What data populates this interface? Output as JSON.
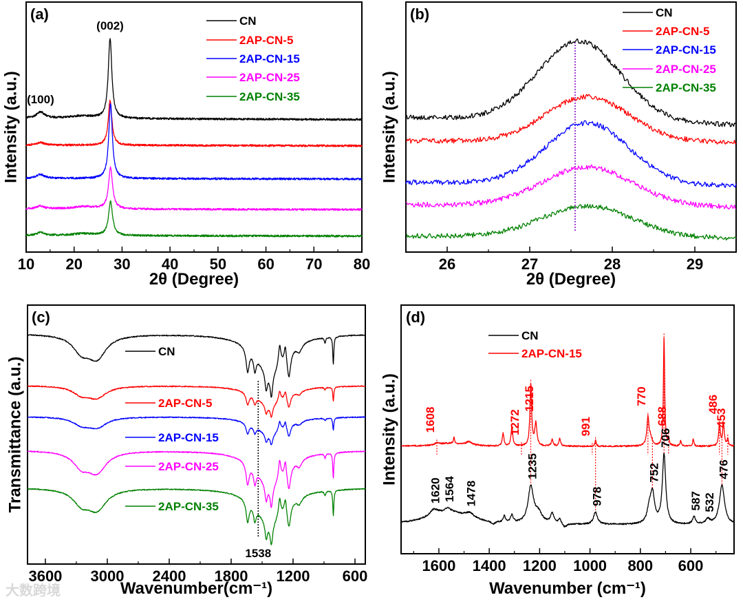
{
  "watermark": "大数跨境",
  "chart_data": [
    {
      "panel_label": "(a)",
      "type": "line",
      "xlabel": "2θ (Degree)",
      "ylabel": "Intensity (a.u.)",
      "xlim": [
        10,
        80
      ],
      "ylim": [
        0,
        10
      ],
      "xticks": [
        10,
        20,
        30,
        40,
        50,
        60,
        70,
        80
      ],
      "xstep": 0.05,
      "noise": 0.04,
      "legend": "top-right",
      "annotations": [
        {
          "text": "(002)",
          "x": 27.5,
          "series": 0
        },
        {
          "text": "(100)",
          "x": 13,
          "series": 0
        }
      ],
      "series": [
        {
          "name": "CN",
          "color": "#000000",
          "baseline": [
            5.35,
            5.3
          ],
          "peaks": [
            [
              27.5,
              3.2,
              0.45
            ],
            [
              13.0,
              0.25,
              1.0
            ],
            [
              21.5,
              0.1,
              3
            ]
          ]
        },
        {
          "name": "2AP-CN-5",
          "color": "#ff0000",
          "baseline": [
            4.28,
            4.25
          ],
          "peaks": [
            [
              27.5,
              1.8,
              0.45
            ],
            [
              13.0,
              0.1,
              1.0
            ]
          ]
        },
        {
          "name": "2AP-CN-15",
          "color": "#0000ff",
          "baseline": [
            2.95,
            2.92
          ],
          "peaks": [
            [
              27.6,
              3.0,
              0.45
            ],
            [
              13.0,
              0.15,
              1.0
            ]
          ]
        },
        {
          "name": "2AP-CN-25",
          "color": "#ff00ff",
          "baseline": [
            1.72,
            1.7
          ],
          "peaks": [
            [
              27.6,
              1.65,
              0.5
            ],
            [
              13.0,
              0.12,
              1.0
            ],
            [
              22,
              0.1,
              3
            ]
          ]
        },
        {
          "name": "2AP-CN-35",
          "color": "#008000",
          "baseline": [
            0.66,
            0.64
          ],
          "peaks": [
            [
              27.6,
              1.35,
              0.5
            ],
            [
              13.0,
              0.12,
              1.0
            ],
            [
              22,
              0.08,
              3
            ]
          ]
        }
      ]
    },
    {
      "panel_label": "(b)",
      "type": "line",
      "xlabel": "2θ (Degree)",
      "ylabel": "Intensity (a.u.)",
      "xlim": [
        25.5,
        29.5
      ],
      "ylim": [
        0,
        10
      ],
      "xticks": [
        26,
        27,
        28,
        29
      ],
      "xstep": 0.01,
      "noise": 0.1,
      "legend": "top-right",
      "reference_line": 27.55,
      "reference_color": "#8000c0",
      "series": [
        {
          "name": "CN",
          "color": "#000000",
          "baseline": [
            5.4,
            5.1
          ],
          "peaks": [
            [
              27.6,
              3.2,
              0.5,
              "g"
            ]
          ]
        },
        {
          "name": "2AP-CN-5",
          "color": "#ff0000",
          "baseline": [
            4.45,
            4.4
          ],
          "peaks": [
            [
              27.7,
              1.8,
              0.5,
              "g"
            ]
          ]
        },
        {
          "name": "2AP-CN-15",
          "color": "#0000ff",
          "baseline": [
            2.8,
            2.65
          ],
          "peaks": [
            [
              27.7,
              2.45,
              0.5,
              "g"
            ]
          ]
        },
        {
          "name": "2AP-CN-25",
          "color": "#ff00ff",
          "baseline": [
            1.9,
            1.8
          ],
          "peaks": [
            [
              27.7,
              1.55,
              0.55,
              "g"
            ]
          ]
        },
        {
          "name": "2AP-CN-35",
          "color": "#008000",
          "baseline": [
            0.65,
            0.55
          ],
          "peaks": [
            [
              27.7,
              1.25,
              0.55,
              "g"
            ]
          ]
        }
      ]
    },
    {
      "panel_label": "(c)",
      "type": "line",
      "xlabel": "Wavenumber(cm⁻¹)",
      "ylabel": "Transmittance (a.u.)",
      "xlim": [
        3773,
        500
      ],
      "ylim": [
        0,
        10
      ],
      "xticks": [
        3600,
        3000,
        2400,
        1800,
        1200,
        600
      ],
      "xstep": 3,
      "noise": 0.02,
      "legend": "inline",
      "reference_line": 1538,
      "reference_color": "#000000",
      "annotations": [
        {
          "text": "1538",
          "x": 1538
        }
      ],
      "features": [
        [
          3250,
          -0.6,
          100
        ],
        [
          3100,
          -0.85,
          110
        ],
        [
          1420,
          -1.5,
          170
        ],
        [
          1640,
          -0.9,
          18
        ],
        [
          1570,
          -0.6,
          15
        ],
        [
          1460,
          -0.7,
          15
        ],
        [
          1410,
          -0.9,
          15
        ],
        [
          1330,
          0.8,
          14
        ],
        [
          1275,
          0.6,
          12
        ],
        [
          1240,
          -1.0,
          20
        ],
        [
          1140,
          -0.3,
          30
        ],
        [
          890,
          -0.2,
          8
        ],
        [
          810,
          -1.1,
          6
        ]
      ],
      "series": [
        {
          "name": "CN",
          "color": "#000000",
          "baseline": [
            8.9,
            8.9
          ],
          "scale": 1.0
        },
        {
          "name": "2AP-CN-5",
          "color": "#ff0000",
          "baseline": [
            6.9,
            6.9
          ],
          "scale": 0.5
        },
        {
          "name": "2AP-CN-15",
          "color": "#0000ff",
          "baseline": [
            5.7,
            5.7
          ],
          "scale": 0.45
        },
        {
          "name": "2AP-CN-25",
          "color": "#ff00ff",
          "baseline": [
            4.4,
            4.4
          ],
          "scale": 0.9
        },
        {
          "name": "2AP-CN-35",
          "color": "#008000",
          "baseline": [
            2.95,
            2.95
          ],
          "scale": 0.9
        }
      ]
    },
    {
      "panel_label": "(d)",
      "type": "line",
      "xlabel": "Wavenumber (cm⁻¹)",
      "ylabel": "Intensity (a.u.)",
      "xlim": [
        1750,
        428
      ],
      "ylim": [
        0,
        10
      ],
      "xticks": [
        1600,
        1400,
        1200,
        1000,
        800,
        600
      ],
      "xstep": 1.2,
      "noise": 0.03,
      "legend": "top-left",
      "marker_lines": [
        1608,
        1272,
        1235,
        991,
        978,
        770,
        752,
        706,
        688,
        486,
        476,
        453
      ],
      "series": [
        {
          "name": "CN",
          "color": "#000000",
          "baseline": [
            1.16,
            1.16
          ],
          "peaks": [
            [
              1560,
              0.5,
              100
            ],
            [
              1620,
              0.25,
              20
            ],
            [
              1564,
              0.15,
              15
            ],
            [
              1478,
              0.2,
              20
            ],
            [
              1340,
              0.25,
              5
            ],
            [
              1310,
              0.3,
              6
            ],
            [
              1235,
              1.45,
              13
            ],
            [
              1205,
              0.4,
              18
            ],
            [
              1150,
              0.4,
              8
            ],
            [
              1120,
              0.2,
              6
            ],
            [
              978,
              0.5,
              9
            ],
            [
              765,
              0.5,
              10
            ],
            [
              752,
              1.2,
              10
            ],
            [
              706,
              2.8,
              8
            ],
            [
              587,
              0.3,
              7
            ],
            [
              532,
              0.2,
              10
            ],
            [
              476,
              1.6,
              12
            ],
            [
              1100,
              -0.15,
              10
            ],
            [
              1385,
              -0.12,
              10
            ]
          ],
          "annotations": [
            "1620",
            "1564",
            "1478",
            "1235",
            "978",
            "752",
            "706",
            "587",
            "532",
            "476"
          ]
        },
        {
          "name": "2AP-CN-15",
          "color": "#ff0000",
          "baseline": [
            4.32,
            4.32
          ],
          "peaks": [
            [
              1560,
              0.12,
              60
            ],
            [
              1608,
              0.08,
              8
            ],
            [
              1540,
              0.25,
              3
            ],
            [
              1480,
              0.15,
              15
            ],
            [
              1345,
              0.5,
              4
            ],
            [
              1310,
              0.8,
              4
            ],
            [
              1235,
              2.5,
              4
            ],
            [
              1215,
              0.9,
              5
            ],
            [
              1150,
              0.3,
              4
            ],
            [
              1120,
              0.3,
              4
            ],
            [
              978,
              0.25,
              3
            ],
            [
              770,
              1.1,
              5
            ],
            [
              760,
              0.3,
              8
            ],
            [
              706,
              4.4,
              3
            ],
            [
              688,
              0.3,
              3
            ],
            [
              640,
              0.2,
              3
            ],
            [
              590,
              0.3,
              3
            ],
            [
              486,
              0.85,
              4
            ],
            [
              470,
              0.9,
              4
            ],
            [
              453,
              0.3,
              3
            ]
          ],
          "annotations": [
            "1608",
            "1272",
            "1215",
            "991",
            "770",
            "688",
            "486",
            "453"
          ]
        }
      ]
    }
  ]
}
